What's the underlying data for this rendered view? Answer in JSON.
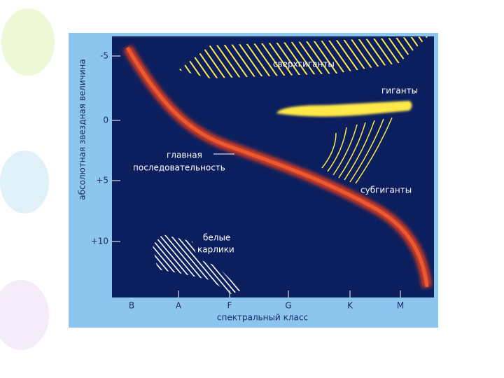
{
  "axes": {
    "y_title": "абсолютная звездная величина",
    "y_ticks": [
      "-5",
      "0",
      "+5",
      "+10"
    ],
    "x_title": "спектральный класс",
    "x_ticks": [
      "B",
      "A",
      "F",
      "G",
      "K",
      "M"
    ]
  },
  "regions": {
    "supergiants": "сверхгиганты",
    "giants": "гиганты",
    "main_sequence": [
      "главная",
      "последовательность"
    ],
    "subgiants": "субгиганты",
    "white_dwarfs": [
      "белые",
      "карлики"
    ]
  }
}
